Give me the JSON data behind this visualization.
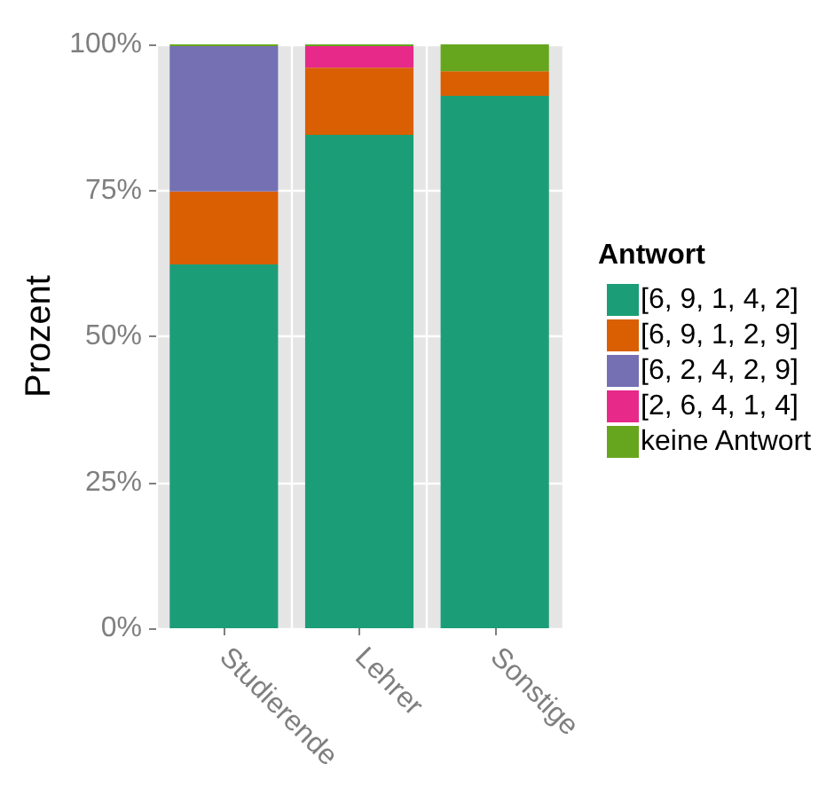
{
  "chart_data": {
    "type": "bar",
    "stacked": true,
    "ylabel": "Prozent",
    "legend_title": "Antwort",
    "legend": "right",
    "grid": true,
    "categories": [
      "Studierende",
      "Lehrer",
      "Sonstige"
    ],
    "series": [
      {
        "name": "[6, 9, 1, 4, 2]",
        "color": "#1b9e77",
        "values": [
          62.3,
          84.5,
          91.2
        ]
      },
      {
        "name": "[6, 9, 1, 2, 9]",
        "color": "#d95f02",
        "values": [
          12.5,
          11.5,
          4.2
        ]
      },
      {
        "name": "[6, 2, 4, 2, 9]",
        "color": "#7570b3",
        "values": [
          24.9,
          0,
          0
        ]
      },
      {
        "name": "[2, 6, 4, 1, 4]",
        "color": "#e7298a",
        "values": [
          0,
          3.7,
          0
        ]
      },
      {
        "name": "keine Antwort",
        "color": "#66a61e",
        "values": [
          0.3,
          0.3,
          4.6
        ]
      }
    ],
    "ylim": [
      0,
      100
    ],
    "yticks": [
      {
        "value": 0,
        "label": "0%"
      },
      {
        "value": 25,
        "label": "25%"
      },
      {
        "value": 50,
        "label": "50%"
      },
      {
        "value": 75,
        "label": "75%"
      },
      {
        "value": 100,
        "label": "100%"
      }
    ]
  }
}
